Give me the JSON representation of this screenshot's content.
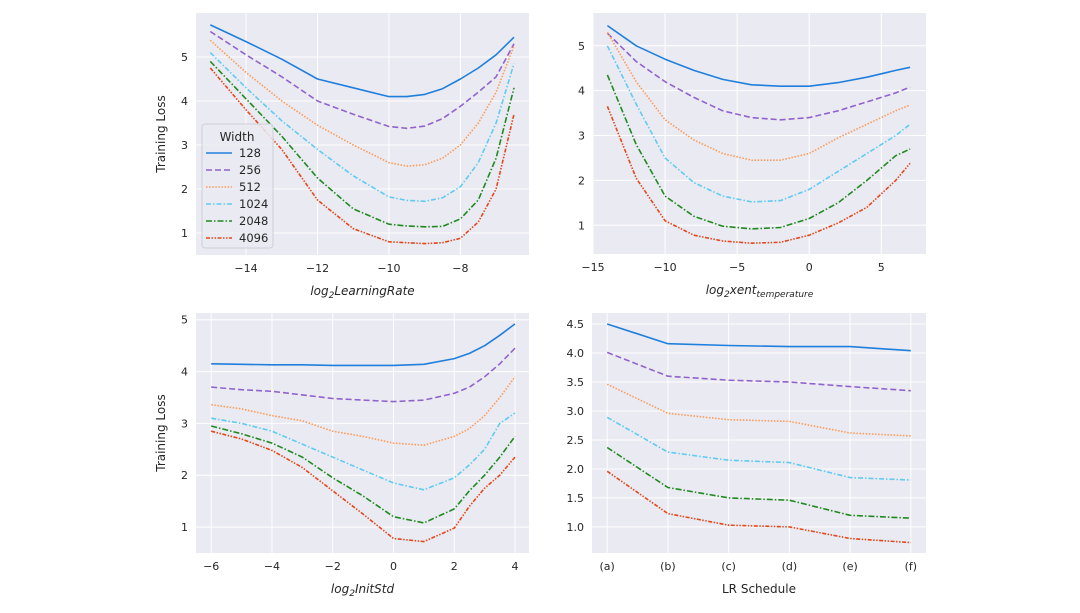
{
  "chart_data": [
    {
      "type": "line",
      "title": "",
      "xlabel_parts": [
        {
          "t": "log"
        },
        {
          "t": "2",
          "sub": true
        },
        {
          "t": "LearningRate"
        }
      ],
      "xlabel_italic": true,
      "ylabel": "Training Loss",
      "xlim": [
        -15.4,
        -6.08
      ],
      "ylim": [
        0.5,
        6.0
      ],
      "xticks": [
        -14,
        -12,
        -10,
        -8
      ],
      "yticks": [
        1,
        2,
        3,
        4,
        5
      ],
      "grid": true,
      "legend": {
        "title": "Width",
        "placement": "center-left"
      },
      "x": [
        -15,
        -14,
        -13,
        -12,
        -11,
        -10,
        -9.5,
        -9,
        -8.5,
        -8,
        -7.5,
        -7,
        -6.5
      ],
      "series": [
        {
          "name": "128",
          "values": [
            5.73,
            5.35,
            4.95,
            4.5,
            4.3,
            4.1,
            4.1,
            4.15,
            4.28,
            4.5,
            4.75,
            5.05,
            5.45
          ]
        },
        {
          "name": "256",
          "values": [
            5.58,
            5.05,
            4.55,
            4.0,
            3.7,
            3.42,
            3.38,
            3.43,
            3.6,
            3.88,
            4.2,
            4.55,
            5.3
          ]
        },
        {
          "name": "512",
          "values": [
            5.38,
            4.65,
            4.0,
            3.45,
            3.0,
            2.6,
            2.52,
            2.55,
            2.7,
            3.0,
            3.5,
            4.2,
            5.25
          ]
        },
        {
          "name": "1024",
          "values": [
            5.1,
            4.3,
            3.55,
            2.9,
            2.3,
            1.82,
            1.74,
            1.72,
            1.8,
            2.05,
            2.6,
            3.5,
            4.85
          ]
        },
        {
          "name": "2048",
          "values": [
            4.9,
            4.05,
            3.2,
            2.25,
            1.55,
            1.2,
            1.16,
            1.14,
            1.15,
            1.32,
            1.75,
            2.7,
            4.3
          ]
        },
        {
          "name": "4096",
          "values": [
            4.75,
            3.8,
            2.9,
            1.75,
            1.1,
            0.8,
            0.78,
            0.76,
            0.78,
            0.88,
            1.25,
            2.0,
            3.7
          ]
        }
      ]
    },
    {
      "type": "line",
      "title": "",
      "xlabel_parts": [
        {
          "t": "log"
        },
        {
          "t": "2",
          "sub": true
        },
        {
          "t": "xent"
        },
        {
          "t": "temperature",
          "sub": true
        }
      ],
      "xlabel_italic": true,
      "ylabel": "",
      "xlim": [
        -15,
        8.1
      ],
      "ylim": [
        0.36,
        5.73
      ],
      "xticks": [
        -15,
        -10,
        -5,
        0,
        5
      ],
      "yticks": [
        1,
        2,
        3,
        4,
        5
      ],
      "grid": true,
      "x": [
        -14,
        -12,
        -10,
        -8,
        -6,
        -4,
        -2,
        0,
        2,
        4,
        6,
        7
      ],
      "series": [
        {
          "name": "128",
          "values": [
            5.45,
            5.0,
            4.7,
            4.45,
            4.25,
            4.13,
            4.1,
            4.1,
            4.18,
            4.3,
            4.45,
            4.52
          ]
        },
        {
          "name": "256",
          "values": [
            5.28,
            4.65,
            4.2,
            3.85,
            3.55,
            3.4,
            3.35,
            3.4,
            3.55,
            3.75,
            3.95,
            4.08
          ]
        },
        {
          "name": "512",
          "values": [
            5.3,
            4.2,
            3.35,
            2.9,
            2.6,
            2.45,
            2.45,
            2.6,
            2.95,
            3.25,
            3.55,
            3.68
          ]
        },
        {
          "name": "1024",
          "values": [
            5.0,
            3.7,
            2.5,
            1.95,
            1.65,
            1.52,
            1.55,
            1.8,
            2.2,
            2.6,
            3.0,
            3.25
          ]
        },
        {
          "name": "2048",
          "values": [
            4.35,
            2.8,
            1.65,
            1.2,
            0.98,
            0.92,
            0.95,
            1.15,
            1.5,
            2.0,
            2.55,
            2.7
          ]
        },
        {
          "name": "4096",
          "values": [
            3.65,
            2.05,
            1.1,
            0.78,
            0.65,
            0.6,
            0.62,
            0.78,
            1.05,
            1.4,
            2.0,
            2.38
          ]
        }
      ]
    },
    {
      "type": "line",
      "title": "",
      "xlabel_parts": [
        {
          "t": "log"
        },
        {
          "t": "2",
          "sub": true
        },
        {
          "t": "InitStd"
        }
      ],
      "xlabel_italic": true,
      "ylabel": "Training Loss",
      "xlim": [
        -6.5,
        4.46
      ],
      "ylim": [
        0.5,
        5.13
      ],
      "xticks": [
        -6,
        -4,
        -2,
        0,
        2,
        4
      ],
      "yticks": [
        1,
        2,
        3,
        4,
        5
      ],
      "grid": true,
      "x": [
        -6,
        -5,
        -4,
        -3,
        -2,
        -1,
        0,
        1,
        2,
        2.5,
        3,
        3.5,
        4
      ],
      "series": [
        {
          "name": "128",
          "values": [
            4.15,
            4.14,
            4.13,
            4.13,
            4.12,
            4.12,
            4.12,
            4.14,
            4.25,
            4.35,
            4.5,
            4.7,
            4.92
          ]
        },
        {
          "name": "256",
          "values": [
            3.7,
            3.65,
            3.62,
            3.55,
            3.48,
            3.45,
            3.42,
            3.45,
            3.58,
            3.7,
            3.9,
            4.15,
            4.45
          ]
        },
        {
          "name": "512",
          "values": [
            3.36,
            3.28,
            3.15,
            3.05,
            2.85,
            2.75,
            2.62,
            2.58,
            2.75,
            2.9,
            3.15,
            3.5,
            3.9
          ]
        },
        {
          "name": "1024",
          "values": [
            3.1,
            3.0,
            2.85,
            2.6,
            2.35,
            2.1,
            1.85,
            1.72,
            1.95,
            2.2,
            2.5,
            3.0,
            3.2
          ]
        },
        {
          "name": "2048",
          "values": [
            2.95,
            2.8,
            2.62,
            2.35,
            1.95,
            1.6,
            1.2,
            1.08,
            1.35,
            1.7,
            2.0,
            2.35,
            2.75
          ]
        },
        {
          "name": "4096",
          "values": [
            2.85,
            2.7,
            2.48,
            2.15,
            1.7,
            1.25,
            0.78,
            0.72,
            0.98,
            1.4,
            1.75,
            2.0,
            2.35
          ]
        }
      ]
    },
    {
      "type": "line",
      "title": "",
      "xlabel_parts": [
        {
          "t": "LR Schedule"
        }
      ],
      "xlabel_italic": false,
      "ylabel": "",
      "xlim": [
        -0.25,
        5.25
      ],
      "ylim": [
        0.55,
        4.69
      ],
      "categories": [
        "(a)",
        "(b)",
        "(c)",
        "(d)",
        "(e)",
        "(f)"
      ],
      "yticks": [
        1.0,
        1.5,
        2.0,
        2.5,
        3.0,
        3.5,
        4.0,
        4.5
      ],
      "ytick_decimals": 1,
      "grid": true,
      "x": [
        0,
        1,
        2,
        3,
        4,
        5
      ],
      "series": [
        {
          "name": "128",
          "values": [
            4.5,
            4.16,
            4.13,
            4.11,
            4.11,
            4.04
          ]
        },
        {
          "name": "256",
          "values": [
            4.01,
            3.6,
            3.53,
            3.5,
            3.42,
            3.35
          ]
        },
        {
          "name": "512",
          "values": [
            3.46,
            2.96,
            2.85,
            2.82,
            2.62,
            2.57
          ]
        },
        {
          "name": "1024",
          "values": [
            2.89,
            2.29,
            2.15,
            2.11,
            1.85,
            1.81
          ]
        },
        {
          "name": "2048",
          "values": [
            2.37,
            1.68,
            1.5,
            1.46,
            1.2,
            1.15
          ]
        },
        {
          "name": "4096",
          "values": [
            1.96,
            1.23,
            1.03,
            1.0,
            0.8,
            0.73
          ]
        }
      ]
    }
  ],
  "series_colors": {
    "128": "#1f7fdc",
    "256": "#9063cd",
    "512": "#ff9a57",
    "1024": "#5fcbf3",
    "2048": "#1f8a1f",
    "4096": "#e4481b"
  },
  "axes_background": "#eaeaf2"
}
